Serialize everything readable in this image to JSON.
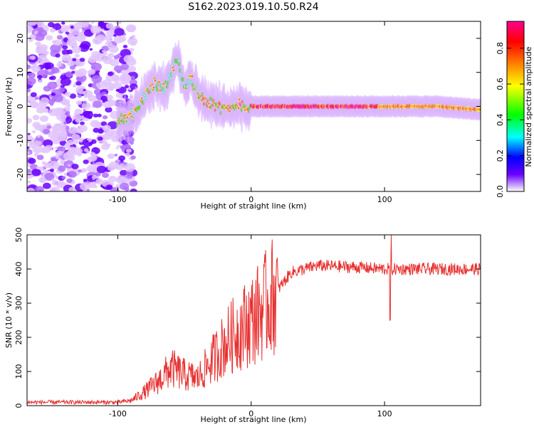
{
  "title": "S162.2023.019.10.50.R24",
  "chart_data": [
    {
      "type": "heatmap",
      "xlabel": "Height of straight line (km)",
      "ylabel": "Frequency (Hz)",
      "xlim": [
        -168,
        172
      ],
      "ylim": [
        -25,
        25
      ],
      "xticks": [
        -100,
        0,
        100
      ],
      "yticks": [
        -20,
        -10,
        0,
        10,
        20
      ],
      "colorbar": {
        "label": "Normalized spectral amplitude",
        "range": [
          0,
          0.95
        ],
        "ticks": [
          0.0,
          0.2,
          0.4,
          0.6,
          0.8
        ],
        "colors": [
          "#ffffff",
          "#6a00ff",
          "#0000ff",
          "#00ffff",
          "#00ff00",
          "#ffff00",
          "#ff8000",
          "#ff0000",
          "#ff0090"
        ]
      },
      "ridge": {
        "x": [
          -95,
          -85,
          -78,
          -72,
          -66,
          -60,
          -55,
          -50,
          -45,
          -40,
          -35,
          -30,
          -25,
          -20,
          -15,
          -10,
          -5,
          0,
          20,
          50,
          80,
          100,
          140,
          172
        ],
        "y": [
          -4,
          -1,
          4,
          7,
          5,
          9,
          14,
          6,
          8,
          4,
          2,
          1,
          0,
          -1,
          -1,
          1,
          0,
          0,
          0,
          0,
          0,
          0,
          0,
          -1
        ]
      }
    },
    {
      "type": "line",
      "xlabel": "Height of straight line (km)",
      "ylabel": "SNR (10 * v/v)",
      "xlim": [
        -168,
        172
      ],
      "ylim": [
        0,
        500
      ],
      "xticks": [
        -100,
        0,
        100
      ],
      "yticks": [
        0,
        100,
        200,
        300,
        400,
        500
      ],
      "color": "#e83030",
      "trend": {
        "x": [
          -168,
          -100,
          -90,
          -80,
          -70,
          -60,
          -50,
          -40,
          -30,
          -20,
          -10,
          0,
          10,
          20,
          30,
          50,
          80,
          100,
          120,
          150,
          172
        ],
        "y": [
          10,
          10,
          15,
          40,
          70,
          110,
          90,
          80,
          130,
          180,
          220,
          250,
          290,
          340,
          390,
          410,
          405,
          400,
          400,
          400,
          400
        ]
      }
    }
  ]
}
